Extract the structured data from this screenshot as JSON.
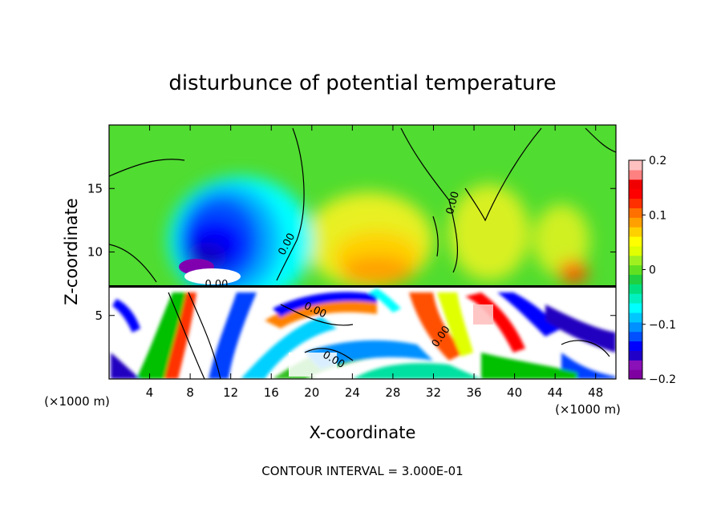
{
  "chart_data": {
    "type": "heatmap",
    "title": "disturbunce of potential temperature",
    "xlabel": "X-coordinate",
    "ylabel": "Z-coordinate",
    "x_unit_label": "(×1000 m)",
    "z_unit_label": "(×1000 m)",
    "x_range": [
      0,
      50
    ],
    "z_range": [
      0,
      20
    ],
    "x_ticks": [
      4,
      8,
      12,
      16,
      20,
      24,
      28,
      32,
      36,
      40,
      44,
      48
    ],
    "z_ticks": [
      5,
      10,
      15
    ],
    "colorbar": {
      "range": [
        -0.2,
        0.2
      ],
      "ticks": [
        {
          "value": 0.2,
          "label": "0.2"
        },
        {
          "value": 0.1,
          "label": "0.1"
        },
        {
          "value": 0,
          "label": "0"
        },
        {
          "value": -0.1,
          "label": "−0.1"
        },
        {
          "value": -0.2,
          "label": "−0.2"
        }
      ],
      "colors": [
        "#7f00a0",
        "#8a10b8",
        "#2000c8",
        "#0000ff",
        "#0050ff",
        "#0090ff",
        "#00c8ff",
        "#00ffff",
        "#00f0c0",
        "#00e080",
        "#20d040",
        "#60e020",
        "#a0f020",
        "#e0ff00",
        "#ffff00",
        "#ffd000",
        "#ffa000",
        "#ff7000",
        "#ff3000",
        "#ff0000",
        "#f00000",
        "#ff8080",
        "#ffc0c0"
      ]
    },
    "contour_labels": [
      {
        "text": "0.00",
        "x": 17.8,
        "z": 10.5,
        "rotate": -62
      },
      {
        "text": "0.00",
        "x": 10.6,
        "z": 7.2,
        "rotate": 0
      },
      {
        "text": "0.00",
        "x": 34.2,
        "z": 13.8,
        "rotate": -75
      },
      {
        "text": "0.00",
        "x": 20.2,
        "z": 5.2,
        "rotate": 25
      },
      {
        "text": "0.00",
        "x": 33.0,
        "z": 3.2,
        "rotate": -55
      },
      {
        "text": "0.00",
        "x": 22.0,
        "z": 1.3,
        "rotate": 30
      }
    ],
    "annotation": "CONTOUR INTERVAL = 3.000E-01",
    "grid": false,
    "legend": "colorbar-right"
  }
}
